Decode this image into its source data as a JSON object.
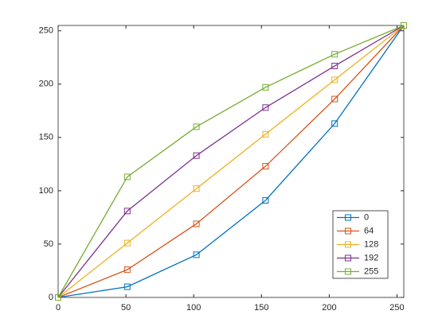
{
  "chart_data": {
    "type": "line",
    "x": [
      0,
      51,
      102,
      153,
      204,
      255
    ],
    "series": [
      {
        "name": "0",
        "color": "#0072bd",
        "values": [
          0,
          10,
          40,
          91,
          163,
          255
        ]
      },
      {
        "name": "64",
        "color": "#d95319",
        "values": [
          0,
          26,
          69,
          123,
          186,
          255
        ]
      },
      {
        "name": "128",
        "color": "#edb120",
        "values": [
          0,
          51,
          102,
          153,
          204,
          255
        ]
      },
      {
        "name": "192",
        "color": "#7e2f8e",
        "values": [
          0,
          81,
          133,
          178,
          217,
          255
        ]
      },
      {
        "name": "255",
        "color": "#77ac30",
        "values": [
          0,
          113,
          160,
          197,
          228,
          255
        ]
      }
    ],
    "xlim": [
      0,
      255
    ],
    "xticks": [
      0,
      50,
      100,
      150,
      200,
      250
    ],
    "ylim": [
      0,
      255
    ],
    "yticks": [
      0,
      50,
      100,
      150,
      200,
      250
    ],
    "legend": "southeast",
    "marker": "square"
  }
}
